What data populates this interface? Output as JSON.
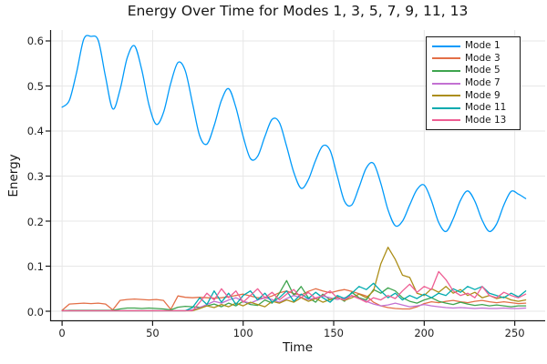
{
  "chart_data": {
    "type": "line",
    "title": "Energy Over Time for Modes 1, 3, 5, 7, 9, 11, 13",
    "xlabel": "Time",
    "ylabel": "Energy",
    "xlim": [
      -6.6,
      266.8
    ],
    "ylim": [
      -0.0222,
      0.6242
    ],
    "grid": true,
    "legend_position": "top-right",
    "grid_color": "#e7e7e7",
    "axis_color": "#1a1a1a",
    "x_ticks": {
      "values": [
        0,
        50,
        100,
        150,
        200,
        250
      ],
      "labels": [
        "0",
        "50",
        "100",
        "150",
        "200",
        "250"
      ]
    },
    "y_ticks": {
      "values": [
        0.0,
        0.1,
        0.2,
        0.3,
        0.4,
        0.5,
        0.6
      ],
      "labels": [
        "0.0",
        "0.1",
        "0.2",
        "0.3",
        "0.4",
        "0.5",
        "0.6"
      ]
    },
    "x": [
      0,
      4,
      8,
      12,
      16,
      20,
      24,
      28,
      32,
      36,
      40,
      44,
      48,
      52,
      56,
      60,
      64,
      68,
      72,
      76,
      80,
      84,
      88,
      92,
      96,
      100,
      104,
      108,
      112,
      116,
      120,
      124,
      128,
      132,
      136,
      140,
      144,
      148,
      152,
      156,
      160,
      164,
      168,
      172,
      176,
      180,
      184,
      188,
      192,
      196,
      200,
      204,
      208,
      212,
      216,
      220,
      224,
      228,
      232,
      236,
      240,
      244,
      248,
      252,
      256
    ],
    "series": [
      {
        "name": "Mode 1",
        "color": "#009AFA",
        "smooth": true,
        "values": [
          0.453,
          0.468,
          0.53,
          0.604,
          0.61,
          0.601,
          0.52,
          0.449,
          0.492,
          0.563,
          0.589,
          0.536,
          0.458,
          0.415,
          0.441,
          0.506,
          0.552,
          0.534,
          0.462,
          0.389,
          0.371,
          0.412,
          0.468,
          0.494,
          0.452,
          0.388,
          0.339,
          0.344,
          0.388,
          0.426,
          0.419,
          0.366,
          0.308,
          0.273,
          0.292,
          0.335,
          0.367,
          0.357,
          0.3,
          0.244,
          0.236,
          0.275,
          0.318,
          0.328,
          0.284,
          0.225,
          0.19,
          0.2,
          0.236,
          0.27,
          0.28,
          0.245,
          0.197,
          0.177,
          0.205,
          0.246,
          0.267,
          0.244,
          0.202,
          0.177,
          0.194,
          0.236,
          0.266,
          0.26,
          0.25
        ]
      },
      {
        "name": "Mode 3",
        "color": "#E36F47",
        "smooth": false,
        "values": [
          0.002,
          0.016,
          0.017,
          0.018,
          0.017,
          0.018,
          0.016,
          0.003,
          0.024,
          0.026,
          0.027,
          0.026,
          0.025,
          0.026,
          0.024,
          0.004,
          0.034,
          0.031,
          0.03,
          0.031,
          0.03,
          0.029,
          0.03,
          0.032,
          0.035,
          0.038,
          0.034,
          0.03,
          0.029,
          0.034,
          0.041,
          0.045,
          0.039,
          0.036,
          0.044,
          0.05,
          0.045,
          0.041,
          0.045,
          0.048,
          0.044,
          0.039,
          0.034,
          0.02,
          0.012,
          0.008,
          0.006,
          0.005,
          0.005,
          0.01,
          0.017,
          0.021,
          0.019,
          0.022,
          0.024,
          0.021,
          0.019,
          0.022,
          0.024,
          0.021,
          0.019,
          0.021,
          0.019,
          0.017,
          0.018
        ]
      },
      {
        "name": "Mode 5",
        "color": "#3EA44E",
        "smooth": false,
        "values": [
          0.001,
          0.002,
          0.002,
          0.002,
          0.002,
          0.002,
          0.002,
          0.002,
          0.005,
          0.007,
          0.007,
          0.006,
          0.007,
          0.006,
          0.005,
          0.003,
          0.009,
          0.011,
          0.01,
          0.009,
          0.012,
          0.016,
          0.01,
          0.018,
          0.012,
          0.022,
          0.015,
          0.013,
          0.025,
          0.018,
          0.04,
          0.068,
          0.035,
          0.055,
          0.03,
          0.02,
          0.038,
          0.025,
          0.032,
          0.022,
          0.042,
          0.03,
          0.025,
          0.048,
          0.04,
          0.052,
          0.045,
          0.03,
          0.022,
          0.018,
          0.025,
          0.03,
          0.022,
          0.018,
          0.015,
          0.02,
          0.016,
          0.013,
          0.015,
          0.012,
          0.014,
          0.012,
          0.01,
          0.012,
          0.012
        ]
      },
      {
        "name": "Mode 7",
        "color": "#C371D2",
        "smooth": false,
        "values": [
          0.001,
          0.001,
          0.001,
          0.001,
          0.001,
          0.001,
          0.001,
          0.001,
          0.001,
          0.001,
          0.001,
          0.001,
          0.001,
          0.001,
          0.001,
          0.001,
          0.001,
          0.001,
          0.003,
          0.008,
          0.015,
          0.022,
          0.018,
          0.025,
          0.03,
          0.022,
          0.018,
          0.025,
          0.03,
          0.026,
          0.02,
          0.028,
          0.035,
          0.03,
          0.026,
          0.03,
          0.034,
          0.03,
          0.026,
          0.03,
          0.034,
          0.028,
          0.022,
          0.016,
          0.012,
          0.014,
          0.018,
          0.014,
          0.01,
          0.012,
          0.015,
          0.012,
          0.01,
          0.008,
          0.007,
          0.008,
          0.007,
          0.006,
          0.007,
          0.006,
          0.006,
          0.007,
          0.006,
          0.006,
          0.007
        ]
      },
      {
        "name": "Mode 9",
        "color": "#AC8E18",
        "smooth": false,
        "values": [
          0.001,
          0.001,
          0.001,
          0.001,
          0.001,
          0.001,
          0.001,
          0.001,
          0.001,
          0.001,
          0.001,
          0.001,
          0.001,
          0.001,
          0.001,
          0.001,
          0.001,
          0.001,
          0.001,
          0.006,
          0.012,
          0.008,
          0.015,
          0.01,
          0.018,
          0.012,
          0.02,
          0.015,
          0.01,
          0.022,
          0.018,
          0.025,
          0.02,
          0.03,
          0.022,
          0.028,
          0.02,
          0.026,
          0.03,
          0.024,
          0.03,
          0.038,
          0.03,
          0.045,
          0.105,
          0.142,
          0.115,
          0.08,
          0.075,
          0.04,
          0.035,
          0.05,
          0.042,
          0.055,
          0.04,
          0.048,
          0.035,
          0.042,
          0.03,
          0.035,
          0.028,
          0.032,
          0.025,
          0.022,
          0.025
        ]
      },
      {
        "name": "Mode 11",
        "color": "#00AAAE",
        "smooth": false,
        "values": [
          0.001,
          0.001,
          0.001,
          0.001,
          0.001,
          0.001,
          0.001,
          0.001,
          0.001,
          0.001,
          0.001,
          0.001,
          0.001,
          0.001,
          0.001,
          0.001,
          0.001,
          0.001,
          0.008,
          0.03,
          0.015,
          0.045,
          0.02,
          0.04,
          0.015,
          0.035,
          0.045,
          0.025,
          0.04,
          0.02,
          0.03,
          0.045,
          0.022,
          0.038,
          0.028,
          0.042,
          0.03,
          0.02,
          0.035,
          0.028,
          0.04,
          0.055,
          0.048,
          0.062,
          0.045,
          0.03,
          0.04,
          0.025,
          0.035,
          0.028,
          0.038,
          0.03,
          0.04,
          0.035,
          0.05,
          0.042,
          0.055,
          0.048,
          0.055,
          0.04,
          0.035,
          0.03,
          0.04,
          0.032,
          0.045
        ]
      },
      {
        "name": "Mode 13",
        "color": "#EE5E93",
        "smooth": false,
        "values": [
          0.001,
          0.001,
          0.001,
          0.001,
          0.001,
          0.001,
          0.001,
          0.001,
          0.001,
          0.001,
          0.001,
          0.001,
          0.001,
          0.001,
          0.001,
          0.001,
          0.001,
          0.001,
          0.001,
          0.02,
          0.04,
          0.025,
          0.05,
          0.03,
          0.045,
          0.02,
          0.035,
          0.05,
          0.03,
          0.042,
          0.025,
          0.038,
          0.048,
          0.03,
          0.042,
          0.028,
          0.035,
          0.045,
          0.03,
          0.025,
          0.035,
          0.028,
          0.02,
          0.03,
          0.025,
          0.035,
          0.028,
          0.045,
          0.06,
          0.042,
          0.055,
          0.048,
          0.088,
          0.07,
          0.045,
          0.035,
          0.04,
          0.03,
          0.055,
          0.035,
          0.03,
          0.042,
          0.035,
          0.03,
          0.038
        ]
      }
    ]
  }
}
